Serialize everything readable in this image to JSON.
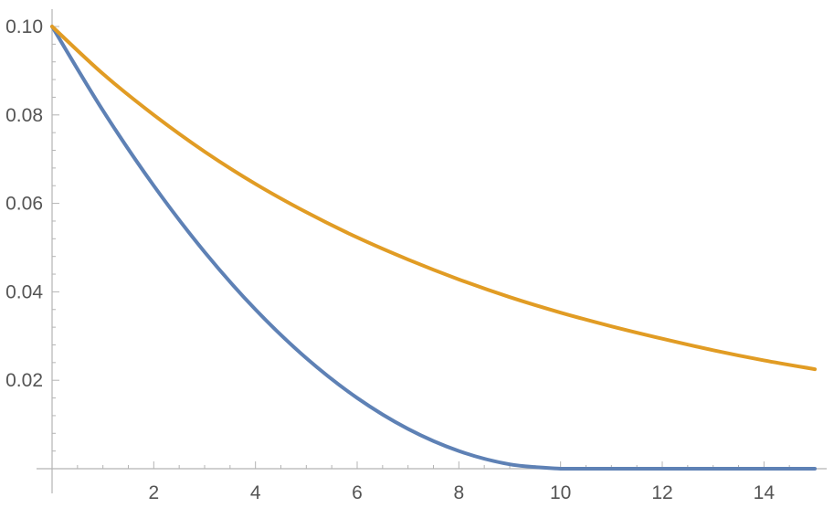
{
  "chart_data": {
    "type": "line",
    "title": "",
    "xlabel": "",
    "ylabel": "",
    "xlim": [
      0,
      15
    ],
    "ylim": [
      0,
      0.1
    ],
    "x_ticks": [
      2,
      4,
      6,
      8,
      10,
      12,
      14
    ],
    "x_tick_labels": [
      "2",
      "4",
      "6",
      "8",
      "10",
      "12",
      "14"
    ],
    "y_ticks": [
      0.02,
      0.04,
      0.06,
      0.08,
      0.1
    ],
    "y_tick_labels": [
      "0.02",
      "0.04",
      "0.06",
      "0.08",
      "0.10"
    ],
    "grid": false,
    "legend": "none",
    "series": [
      {
        "color": "#5e81b5",
        "x": [
          0,
          1,
          2,
          3,
          4,
          5,
          6,
          7,
          8,
          9,
          10,
          11,
          12,
          13,
          14,
          15
        ],
        "y": [
          0.1,
          0.081,
          0.064,
          0.049,
          0.036,
          0.025,
          0.016,
          0.009,
          0.004,
          0.001,
          0,
          0,
          0,
          0,
          0,
          0
        ]
      },
      {
        "color": "#e19c24",
        "x": [
          0,
          1,
          2,
          3,
          4,
          5,
          6,
          7,
          8,
          9,
          10,
          11,
          12,
          13,
          14,
          15
        ],
        "y": [
          0.1,
          0.0893,
          0.08,
          0.0717,
          0.0644,
          0.058,
          0.0523,
          0.0473,
          0.0428,
          0.0388,
          0.0353,
          0.0322,
          0.0294,
          0.0268,
          0.0245,
          0.0225
        ]
      }
    ]
  }
}
